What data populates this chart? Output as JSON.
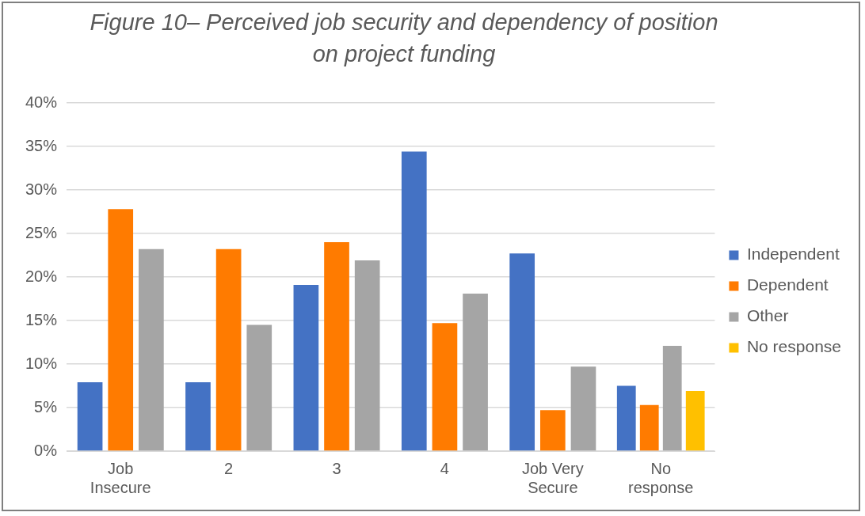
{
  "chart_data": {
    "type": "bar",
    "title": "Figure 10– Perceived job security and dependency of position on project funding",
    "categories": [
      "Job Insecure",
      "2",
      "3",
      "4",
      "Job Very Secure",
      "No response"
    ],
    "series": [
      {
        "name": "Independent",
        "color": "#4472c4",
        "values": [
          7.9,
          7.9,
          19.1,
          34.4,
          22.7,
          7.5
        ]
      },
      {
        "name": "Dependent",
        "color": "#ff7b00",
        "values": [
          27.8,
          23.2,
          24.0,
          14.7,
          4.7,
          5.3
        ]
      },
      {
        "name": "Other",
        "color": "#a5a5a5",
        "values": [
          23.2,
          14.5,
          21.9,
          18.1,
          9.7,
          12.1
        ]
      },
      {
        "name": "No response",
        "color": "#ffc000",
        "values": [
          null,
          null,
          null,
          null,
          null,
          6.9
        ]
      }
    ],
    "ylim": [
      0,
      40
    ],
    "yticks": [
      {
        "value": 0,
        "label": "0%"
      },
      {
        "value": 5,
        "label": "5%"
      },
      {
        "value": 10,
        "label": "10%"
      },
      {
        "value": 15,
        "label": "15%"
      },
      {
        "value": 20,
        "label": "20%"
      },
      {
        "value": 25,
        "label": "25%"
      },
      {
        "value": 30,
        "label": "30%"
      },
      {
        "value": 35,
        "label": "35%"
      },
      {
        "value": 40,
        "label": "40%"
      }
    ],
    "grid": "y",
    "legend": "right"
  }
}
